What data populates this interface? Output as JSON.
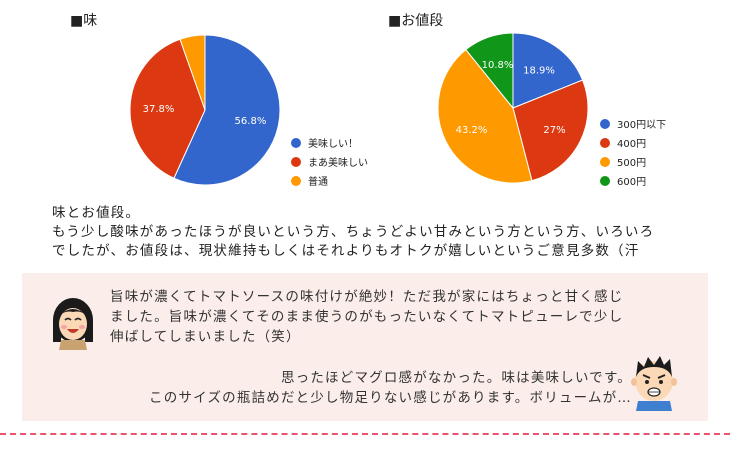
{
  "chart_data": [
    {
      "type": "pie",
      "title": "■味",
      "categories": [
        "美味しい！",
        "まあ美味しい",
        "普通"
      ],
      "values": [
        56.8,
        37.8,
        5.4
      ],
      "labels": [
        "56.8%",
        "37.8%",
        ""
      ],
      "colors": [
        "#3366cc",
        "#dc3912",
        "#ff9900"
      ],
      "legend": "right"
    },
    {
      "type": "pie",
      "title": "■お値段",
      "categories": [
        "300円以下",
        "400円",
        "500円",
        "600円"
      ],
      "values": [
        18.9,
        27,
        43.2,
        10.8
      ],
      "labels": [
        "18.9%",
        "27%",
        "43.2%",
        "10.8%"
      ],
      "colors": [
        "#3366cc",
        "#dc3912",
        "#ff9900",
        "#109618"
      ],
      "legend": "right"
    }
  ],
  "summary": {
    "line1": "味とお値段。",
    "line2": "もう少し酸味があったほうが良いという方、ちょうどよい甘みという方という方、いろいろ",
    "line3": "でしたが、お値段は、現状維持もしくはそれよりもオトクが嬉しいというご意見多数（汗"
  },
  "comments": {
    "woman": {
      "line1": "旨味が濃くてトマトソースの味付けが絶妙！ただ我が家にはちょっと甘く感じ",
      "line2": "ました。旨味が濃くてそのまま使うのがもったいなくてトマトピューレで少し",
      "line3": "伸ばしてしまいました（笑）"
    },
    "man": {
      "line1": "思ったほどマグロ感がなかった。味は美味しいです。",
      "line2": "このサイズの瓶詰めだと少し物足りない感じがあります。ボリュームが…"
    }
  },
  "icons": {
    "woman": "woman-avatar-icon",
    "man": "man-avatar-icon"
  }
}
